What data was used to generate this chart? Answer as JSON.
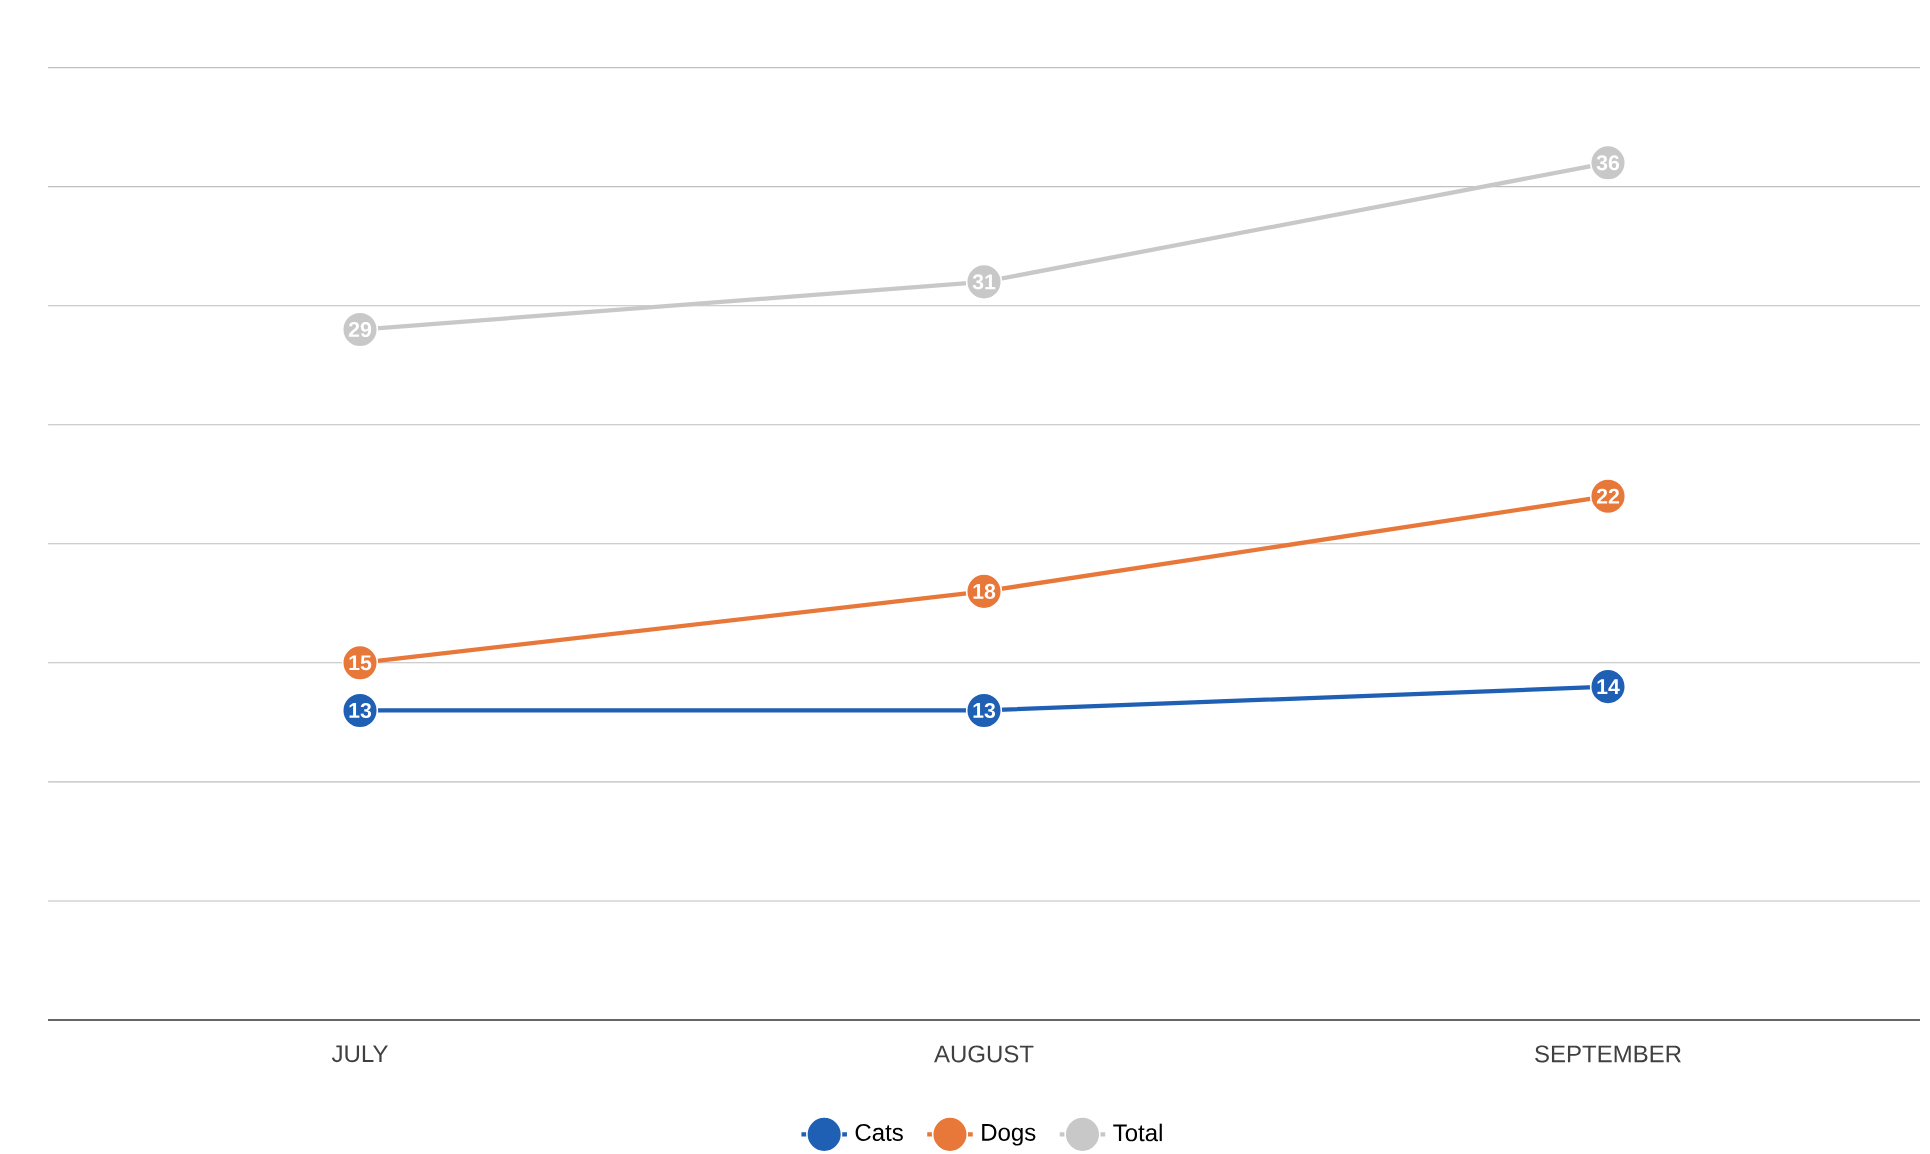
{
  "chart_data": {
    "type": "line",
    "categories": [
      "JULY",
      "AUGUST",
      "SEPTEMBER"
    ],
    "series": [
      {
        "name": "Cats",
        "color": "#1f5fb4",
        "values": [
          13,
          13,
          14
        ]
      },
      {
        "name": "Dogs",
        "color": "#e8773a",
        "values": [
          15,
          18,
          22
        ]
      },
      {
        "name": "Total",
        "color": "#c8c8c8",
        "values": [
          29,
          31,
          36
        ]
      }
    ],
    "grid": "y",
    "tick_labels": "x",
    "legend": "bottom",
    "marker": "circle",
    "line_style": "solid",
    "data_labels": true
  }
}
